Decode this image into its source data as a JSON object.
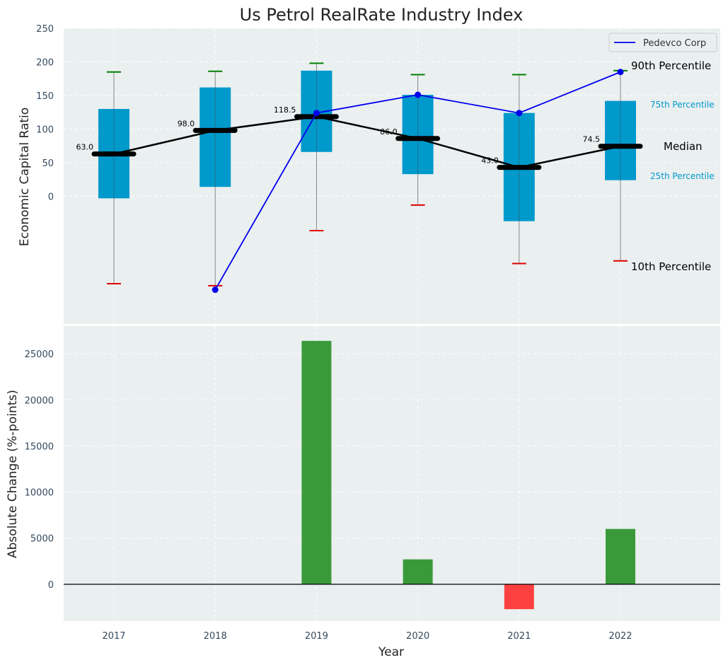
{
  "chart_data": [
    {
      "type": "box",
      "title": "Us Petrol RealRate Industry Index",
      "ylabel": "Economic Capital Ratio",
      "categories": [
        "2017",
        "2018",
        "2019",
        "2020",
        "2021",
        "2022"
      ],
      "y_ticks": [
        0,
        50,
        100,
        150,
        200,
        250
      ],
      "ylim": [
        -190,
        250
      ],
      "grid": true,
      "boxes": [
        {
          "year": "2017",
          "p10": -130,
          "p25": -3,
          "median": 63.0,
          "p75": 130,
          "p90": 185
        },
        {
          "year": "2018",
          "p10": -133,
          "p25": 14,
          "median": 98.0,
          "p75": 162,
          "p90": 186
        },
        {
          "year": "2019",
          "p10": -51,
          "p25": 66,
          "median": 118.5,
          "p75": 187,
          "p90": 198
        },
        {
          "year": "2020",
          "p10": -13,
          "p25": 33,
          "median": 86.0,
          "p75": 151,
          "p90": 181
        },
        {
          "year": "2021",
          "p10": -100,
          "p25": -37,
          "median": 43.0,
          "p75": 124,
          "p90": 181
        },
        {
          "year": "2022",
          "p10": -96,
          "p25": 24,
          "median": 74.5,
          "p75": 142,
          "p90": 187
        }
      ],
      "median_labels": [
        "63.0",
        "98.0",
        "118.5",
        "86.0",
        "43.0",
        "74.5"
      ],
      "company": {
        "name": "Pedevco Corp",
        "color": "#0000ee",
        "x": [
          "2018",
          "2019",
          "2020",
          "2021",
          "2022"
        ],
        "values": [
          -139,
          124,
          151,
          124,
          185
        ]
      },
      "annotations": {
        "p90": "90th Percentile",
        "p75": "75th Percentile",
        "median": "Median",
        "p25": "25th Percentile",
        "p10": "10th Percentile"
      },
      "legend": {
        "position": "top-right",
        "entries": [
          "Pedevco Corp"
        ]
      },
      "colors": {
        "box": "#0099cc",
        "median_line": "#000000",
        "upper_cap": "#008000",
        "lower_cap": "#dd0000",
        "background": "#eaeff0"
      }
    },
    {
      "type": "bar",
      "xlabel": "Year",
      "ylabel": "Absolute Change (%-points)",
      "categories": [
        "2017",
        "2018",
        "2019",
        "2020",
        "2021",
        "2022"
      ],
      "values": [
        0,
        0,
        26400,
        2700,
        -2700,
        6000
      ],
      "y_ticks": [
        0,
        5000,
        10000,
        15000,
        20000,
        25000
      ],
      "ylim": [
        -4000,
        28000
      ],
      "grid": true,
      "colors": {
        "positive": "#3a9a3a",
        "negative": "#ff4040",
        "zero_line": "#000000"
      }
    }
  ]
}
